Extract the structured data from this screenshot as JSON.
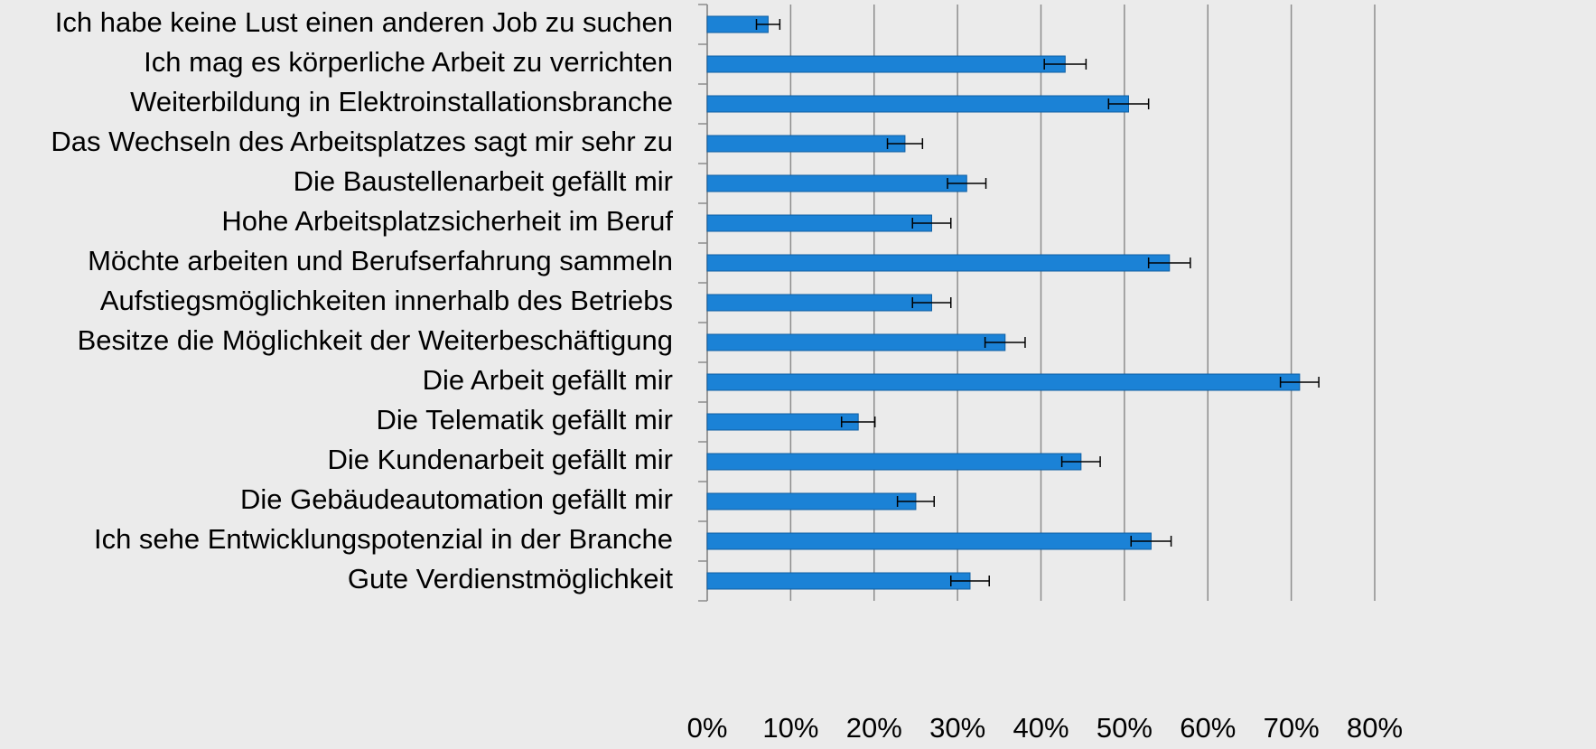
{
  "chart_data": {
    "type": "bar",
    "orientation": "horizontal",
    "categories": [
      "Ich habe keine Lust einen anderen Job zu suchen",
      "Ich mag es körperliche Arbeit zu verrichten",
      "Weiterbildung in Elektroinstallationsbranche",
      "Das Wechseln des Arbeitsplatzes sagt mir sehr zu",
      "Die Baustellenarbeit gefällt mir",
      "Hohe Arbeitsplatzsicherheit im Beruf",
      "Möchte arbeiten und Berufserfahrung sammeln",
      "Aufstiegsmöglichkeiten innerhalb des Betriebs",
      "Besitze die Möglichkeit der Weiterbeschäftigung",
      "Die Arbeit gefällt mir",
      "Die Telematik gefällt mir",
      "Die Kundenarbeit gefällt mir",
      "Die Gebäudeautomation gefällt mir",
      "Ich sehe Entwicklungspotenzial in der Branche",
      "Gute Verdienstmöglichkeit"
    ],
    "values": [
      7.3,
      42.9,
      50.5,
      23.7,
      31.1,
      26.9,
      55.4,
      26.9,
      35.7,
      71.0,
      18.1,
      44.8,
      25.0,
      53.2,
      31.5
    ],
    "errors": [
      1.4,
      2.5,
      2.4,
      2.1,
      2.3,
      2.3,
      2.5,
      2.3,
      2.4,
      2.3,
      2.0,
      2.3,
      2.2,
      2.4,
      2.3
    ],
    "color": "#1b82d6",
    "xlim": [
      0,
      80
    ],
    "xticks": [
      {
        "value": 0,
        "label": "0%"
      },
      {
        "value": 10,
        "label": "10%"
      },
      {
        "value": 20,
        "label": "20%"
      },
      {
        "value": 30,
        "label": "30%"
      },
      {
        "value": 40,
        "label": "40%"
      },
      {
        "value": 50,
        "label": "50%"
      },
      {
        "value": 60,
        "label": "60%"
      },
      {
        "value": 70,
        "label": "70%"
      },
      {
        "value": 80,
        "label": "80%"
      }
    ],
    "grid": true
  }
}
